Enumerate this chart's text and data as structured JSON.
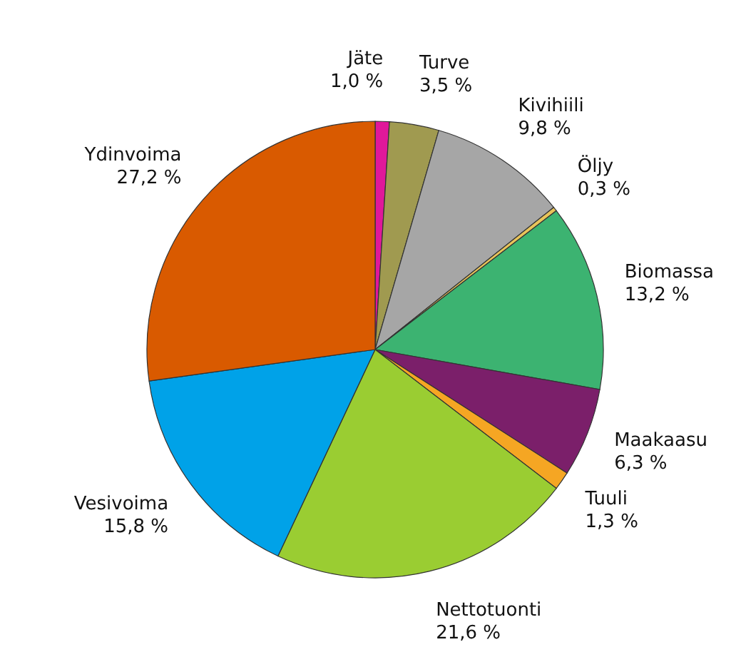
{
  "chart_data": {
    "type": "pie",
    "categories": [
      "Jäte",
      "Turve",
      "Kivihiili",
      "Öljy",
      "Biomassa",
      "Maakaasu",
      "Tuuli",
      "Nettotuonti",
      "Vesivoima",
      "Ydinvoima"
    ],
    "values": [
      1.0,
      3.5,
      9.8,
      0.3,
      13.2,
      6.3,
      1.3,
      21.6,
      15.8,
      27.2
    ],
    "colors": [
      "#e0189a",
      "#a09a50",
      "#a6a6a6",
      "#e8c45a",
      "#3cb371",
      "#7b1f6a",
      "#f5a623",
      "#9acd32",
      "#00a2e8",
      "#d95a00"
    ],
    "value_labels": [
      "1,0 %",
      "3,5 %",
      "9,8 %",
      "0,3 %",
      "13,2 %",
      "6,3 %",
      "1,3 %",
      "21,6 %",
      "15,8 %",
      "27,2 %"
    ]
  }
}
